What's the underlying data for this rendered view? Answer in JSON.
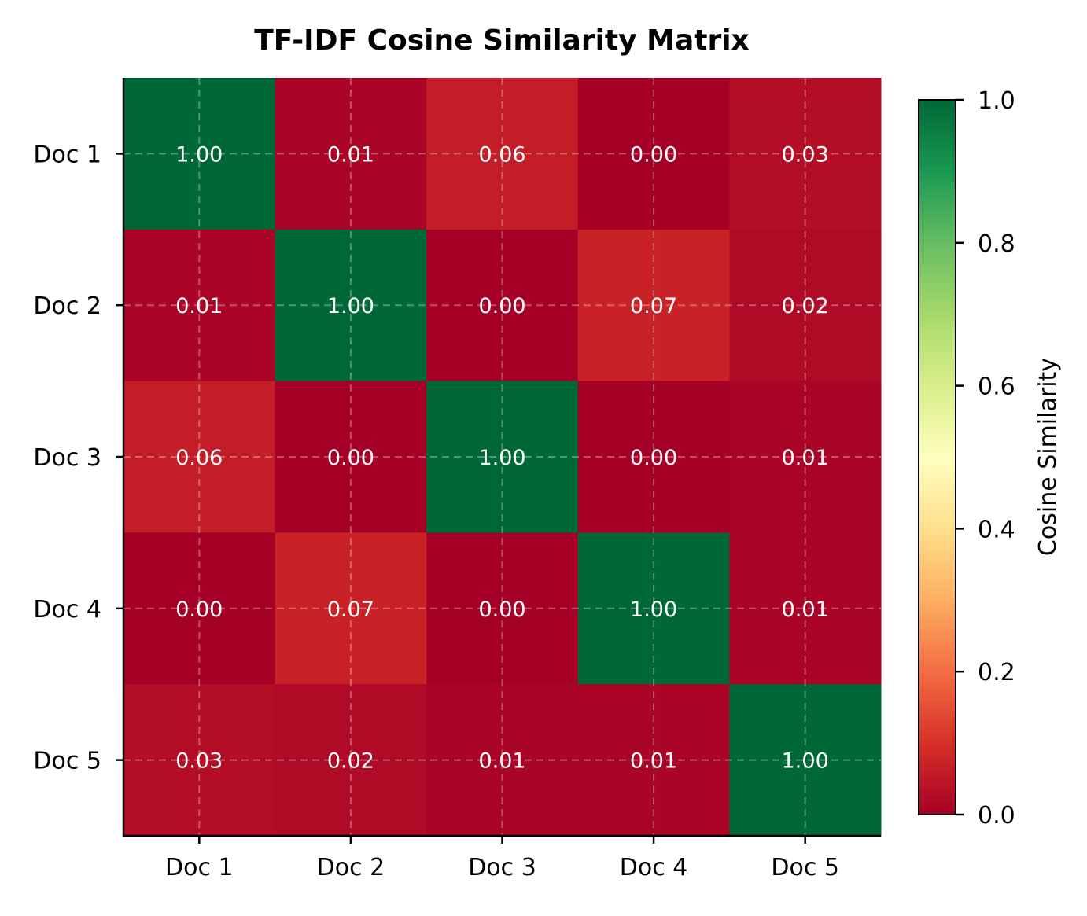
{
  "chart_data": {
    "type": "heatmap",
    "title": "TF-IDF Cosine Similarity Matrix",
    "xlabel": "",
    "ylabel": "",
    "x_categories": [
      "Doc 1",
      "Doc 2",
      "Doc 3",
      "Doc 4",
      "Doc 5"
    ],
    "y_categories": [
      "Doc 1",
      "Doc 2",
      "Doc 3",
      "Doc 4",
      "Doc 5"
    ],
    "values": [
      [
        1.0,
        0.01,
        0.06,
        0.0,
        0.03
      ],
      [
        0.01,
        1.0,
        0.0,
        0.07,
        0.02
      ],
      [
        0.06,
        0.0,
        1.0,
        0.0,
        0.01
      ],
      [
        0.0,
        0.07,
        0.0,
        1.0,
        0.01
      ],
      [
        0.03,
        0.02,
        0.01,
        0.01,
        1.0
      ]
    ],
    "value_format": "0.00",
    "colormap": "RdYlGn",
    "colormap_stops": [
      "#a50026",
      "#d73027",
      "#f46d43",
      "#fdae61",
      "#fee08b",
      "#ffffbf",
      "#d9ef8b",
      "#a6d96a",
      "#66bd63",
      "#1a9850",
      "#006837"
    ],
    "vmin": 0.0,
    "vmax": 1.0,
    "grid": true,
    "colorbar": {
      "label": "Cosine Similarity",
      "ticks": [
        "0.0",
        "0.2",
        "0.4",
        "0.6",
        "0.8",
        "1.0"
      ],
      "placement": "right"
    }
  }
}
